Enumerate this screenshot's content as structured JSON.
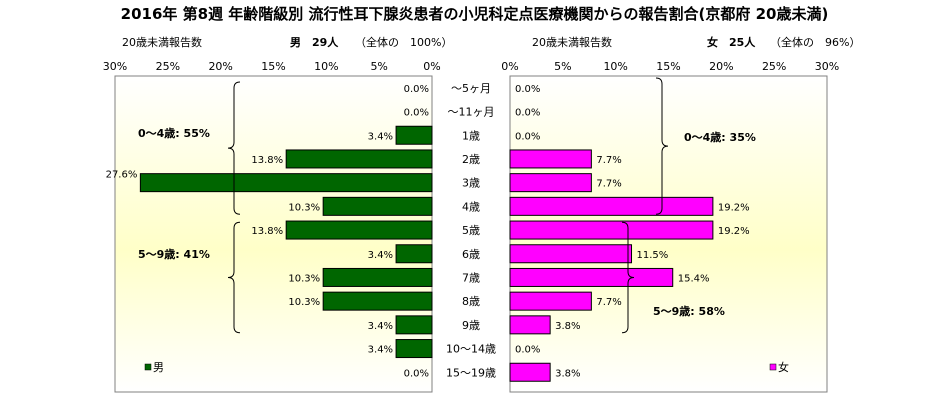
{
  "title": "2016年 第8週 年齢階級別 流行性耳下腺炎患者の小児科定点医療機関からの報告割合(京都府 20歳未満)",
  "header": {
    "male_count_label": "20歳未満報告数",
    "male_summary": "男　29人",
    "male_share": "（全体の　100%）",
    "female_count_label": "20歳未満報告数",
    "female_summary": "女　25人",
    "female_share": "（全体の　96%）"
  },
  "colors": {
    "male_bar": "#006600",
    "female_bar": "#ff00ff",
    "background_top": "#ffffff",
    "background_mid": "#ffffc8"
  },
  "chart_data": {
    "type": "bar",
    "orientation": "horizontal",
    "layout": "population-pyramid",
    "categories": [
      "～5ヶ月",
      "～11ヶ月",
      "1歳",
      "2歳",
      "3歳",
      "4歳",
      "5歳",
      "6歳",
      "7歳",
      "8歳",
      "9歳",
      "10～14歳",
      "15～19歳"
    ],
    "series": [
      {
        "name": "男",
        "values": [
          0.0,
          0.0,
          3.4,
          13.8,
          27.6,
          10.3,
          13.8,
          3.4,
          10.3,
          10.3,
          3.4,
          3.4,
          0.0
        ],
        "labels": [
          "0.0%",
          "0.0%",
          "3.4%",
          "13.8%",
          "27.6%",
          "10.3%",
          "13.8%",
          "3.4%",
          "10.3%",
          "10.3%",
          "3.4%",
          "3.4%",
          "0.0%"
        ]
      },
      {
        "name": "女",
        "values": [
          0.0,
          0.0,
          0.0,
          7.7,
          7.7,
          19.2,
          19.2,
          11.5,
          15.4,
          7.7,
          3.8,
          0.0,
          3.8
        ],
        "labels": [
          "0.0%",
          "0.0%",
          "0.0%",
          "7.7%",
          "7.7%",
          "19.2%",
          "19.2%",
          "11.5%",
          "15.4%",
          "7.7%",
          "3.8%",
          "0.0%",
          "3.8%"
        ]
      }
    ],
    "xlim": [
      0,
      30
    ],
    "male_ticks": [
      "30%",
      "25%",
      "20%",
      "15%",
      "10%",
      "5%",
      "0%"
    ],
    "female_ticks": [
      "0%",
      "5%",
      "10%",
      "15%",
      "20%",
      "25%",
      "30%"
    ],
    "annotations": {
      "male_0_4": "0～4歳: 55%",
      "male_5_9": "5～9歳: 41%",
      "female_0_4": "0～4歳: 35%",
      "female_5_9": "5～9歳: 58%"
    },
    "legend": {
      "male": "男",
      "female": "女",
      "male_position": "bottom-left",
      "female_position": "bottom-right"
    },
    "grid": false
  }
}
